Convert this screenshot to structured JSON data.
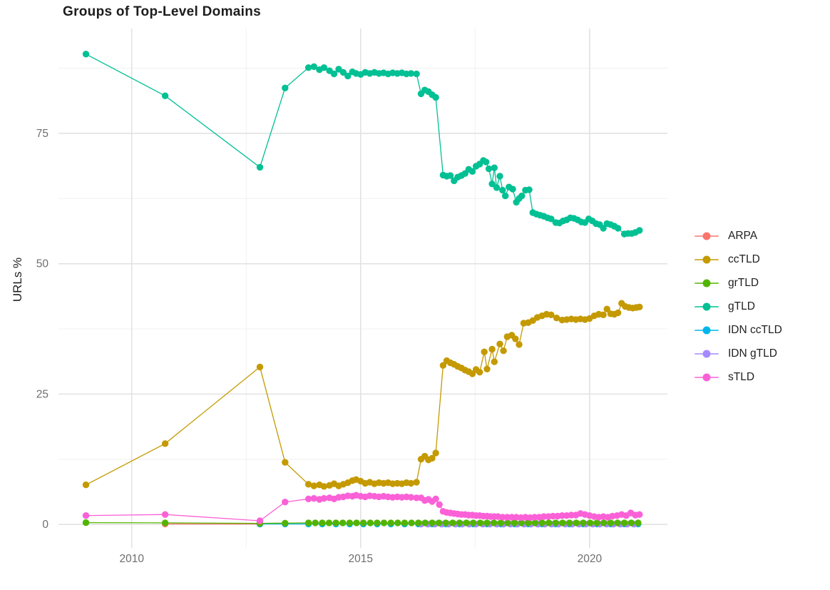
{
  "chart_data": {
    "type": "scatter",
    "title": "Groups of Top-Level Domains",
    "xlabel": "",
    "ylabel": "URLs %",
    "grid": "on",
    "legend_position": "right",
    "xlim": [
      2008.4,
      2021.7
    ],
    "ylim": [
      -4.5,
      95.1
    ],
    "x_ticks": [
      2010,
      2015,
      2020
    ],
    "x_minor_ticks": [
      2012.5,
      2017.5
    ],
    "y_ticks": [
      0,
      25,
      50,
      75
    ],
    "y_minor_ticks": [
      12.5,
      37.5,
      62.5,
      87.5
    ],
    "colors": {
      "grid_major": "#e2e2e2",
      "grid_minor": "#f0f0f0",
      "tick_label": "#6e6e6e",
      "title_text": "#1c1c1c"
    },
    "series": [
      {
        "name": "ARPA",
        "color": "#F8766D",
        "z": 1,
        "points": [
          [
            2010.73,
            0.1
          ],
          [
            2012.8,
            0.08
          ]
        ]
      },
      {
        "name": "ccTLD",
        "color": "#C49A00",
        "z": 4,
        "points": [
          [
            2009.0,
            7.6
          ],
          [
            2010.73,
            15.5
          ],
          [
            2012.8,
            30.2
          ],
          [
            2013.35,
            11.9
          ],
          [
            2013.86,
            7.7
          ],
          [
            2013.98,
            7.4
          ],
          [
            2014.1,
            7.6
          ],
          [
            2014.2,
            7.3
          ],
          [
            2014.32,
            7.5
          ],
          [
            2014.42,
            7.8
          ],
          [
            2014.52,
            7.4
          ],
          [
            2014.62,
            7.7
          ],
          [
            2014.72,
            8.0
          ],
          [
            2014.82,
            8.4
          ],
          [
            2014.9,
            8.6
          ],
          [
            2015.0,
            8.3
          ],
          [
            2015.1,
            7.9
          ],
          [
            2015.2,
            8.1
          ],
          [
            2015.3,
            7.8
          ],
          [
            2015.4,
            8.0
          ],
          [
            2015.5,
            7.9
          ],
          [
            2015.6,
            8.0
          ],
          [
            2015.7,
            7.8
          ],
          [
            2015.8,
            7.9
          ],
          [
            2015.9,
            7.8
          ],
          [
            2016.0,
            8.0
          ],
          [
            2016.1,
            7.9
          ],
          [
            2016.22,
            8.1
          ],
          [
            2016.32,
            12.5
          ],
          [
            2016.4,
            13.1
          ],
          [
            2016.48,
            12.4
          ],
          [
            2016.56,
            12.7
          ],
          [
            2016.64,
            13.7
          ],
          [
            2016.8,
            30.5
          ],
          [
            2016.88,
            31.4
          ],
          [
            2016.96,
            31.0
          ],
          [
            2017.04,
            30.7
          ],
          [
            2017.12,
            30.3
          ],
          [
            2017.2,
            30.0
          ],
          [
            2017.28,
            29.6
          ],
          [
            2017.36,
            29.3
          ],
          [
            2017.44,
            28.9
          ],
          [
            2017.52,
            29.7
          ],
          [
            2017.6,
            29.2
          ],
          [
            2017.7,
            33.1
          ],
          [
            2017.76,
            29.8
          ],
          [
            2017.87,
            33.6
          ],
          [
            2017.92,
            31.2
          ],
          [
            2018.04,
            34.6
          ],
          [
            2018.12,
            33.3
          ],
          [
            2018.2,
            36.0
          ],
          [
            2018.3,
            36.3
          ],
          [
            2018.38,
            35.6
          ],
          [
            2018.46,
            34.5
          ],
          [
            2018.56,
            38.6
          ],
          [
            2018.66,
            38.7
          ],
          [
            2018.76,
            39.1
          ],
          [
            2018.86,
            39.7
          ],
          [
            2018.96,
            40.0
          ],
          [
            2019.06,
            40.3
          ],
          [
            2019.16,
            40.2
          ],
          [
            2019.28,
            39.6
          ],
          [
            2019.4,
            39.2
          ],
          [
            2019.5,
            39.3
          ],
          [
            2019.6,
            39.4
          ],
          [
            2019.7,
            39.3
          ],
          [
            2019.8,
            39.4
          ],
          [
            2019.9,
            39.3
          ],
          [
            2020.0,
            39.5
          ],
          [
            2020.1,
            40.0
          ],
          [
            2020.2,
            40.3
          ],
          [
            2020.3,
            40.2
          ],
          [
            2020.38,
            41.3
          ],
          [
            2020.46,
            40.4
          ],
          [
            2020.54,
            40.3
          ],
          [
            2020.62,
            40.6
          ],
          [
            2020.7,
            42.4
          ],
          [
            2020.78,
            41.8
          ],
          [
            2020.86,
            41.6
          ],
          [
            2020.94,
            41.5
          ],
          [
            2021.02,
            41.6
          ],
          [
            2021.09,
            41.7
          ]
        ]
      },
      {
        "name": "grTLD",
        "color": "#53B400",
        "z": 6,
        "points": [
          [
            2009.0,
            0.35
          ],
          [
            2010.73,
            0.3
          ],
          [
            2012.8,
            0.2
          ],
          [
            2013.35,
            0.25
          ]
        ],
        "fill": {
          "from": 2013.86,
          "to": 2021.09,
          "step": 0.15,
          "value": 0.3
        }
      },
      {
        "name": "gTLD",
        "color": "#00C094",
        "z": 5,
        "points": [
          [
            2009.0,
            90.2
          ],
          [
            2010.73,
            82.2
          ],
          [
            2012.8,
            68.5
          ],
          [
            2013.35,
            83.7
          ],
          [
            2013.86,
            87.6
          ],
          [
            2013.98,
            87.8
          ],
          [
            2014.1,
            87.2
          ],
          [
            2014.2,
            87.6
          ],
          [
            2014.32,
            87.0
          ],
          [
            2014.42,
            86.4
          ],
          [
            2014.52,
            87.3
          ],
          [
            2014.62,
            86.7
          ],
          [
            2014.72,
            86.0
          ],
          [
            2014.82,
            86.8
          ],
          [
            2014.9,
            86.5
          ],
          [
            2015.0,
            86.3
          ],
          [
            2015.1,
            86.7
          ],
          [
            2015.2,
            86.5
          ],
          [
            2015.3,
            86.7
          ],
          [
            2015.4,
            86.5
          ],
          [
            2015.5,
            86.6
          ],
          [
            2015.6,
            86.4
          ],
          [
            2015.7,
            86.6
          ],
          [
            2015.8,
            86.5
          ],
          [
            2015.9,
            86.6
          ],
          [
            2016.0,
            86.4
          ],
          [
            2016.1,
            86.5
          ],
          [
            2016.22,
            86.4
          ],
          [
            2016.32,
            82.6
          ],
          [
            2016.4,
            83.3
          ],
          [
            2016.48,
            83.0
          ],
          [
            2016.56,
            82.4
          ],
          [
            2016.64,
            81.9
          ],
          [
            2016.8,
            67.0
          ],
          [
            2016.88,
            66.8
          ],
          [
            2016.96,
            66.9
          ],
          [
            2017.04,
            65.9
          ],
          [
            2017.12,
            66.6
          ],
          [
            2017.2,
            66.9
          ],
          [
            2017.28,
            67.3
          ],
          [
            2017.36,
            68.1
          ],
          [
            2017.44,
            67.7
          ],
          [
            2017.52,
            68.7
          ],
          [
            2017.6,
            69.1
          ],
          [
            2017.68,
            69.8
          ],
          [
            2017.74,
            69.5
          ],
          [
            2017.8,
            68.2
          ],
          [
            2017.87,
            65.3
          ],
          [
            2017.92,
            68.4
          ],
          [
            2017.97,
            64.6
          ],
          [
            2018.04,
            66.8
          ],
          [
            2018.1,
            64.1
          ],
          [
            2018.16,
            63.0
          ],
          [
            2018.24,
            64.7
          ],
          [
            2018.32,
            64.3
          ],
          [
            2018.4,
            61.8
          ],
          [
            2018.46,
            62.5
          ],
          [
            2018.52,
            63.0
          ],
          [
            2018.6,
            64.1
          ],
          [
            2018.68,
            64.2
          ],
          [
            2018.76,
            59.8
          ],
          [
            2018.84,
            59.5
          ],
          [
            2018.92,
            59.3
          ],
          [
            2019.0,
            59.1
          ],
          [
            2019.08,
            58.8
          ],
          [
            2019.16,
            58.6
          ],
          [
            2019.26,
            57.9
          ],
          [
            2019.34,
            57.8
          ],
          [
            2019.42,
            58.2
          ],
          [
            2019.5,
            58.4
          ],
          [
            2019.58,
            58.8
          ],
          [
            2019.66,
            58.7
          ],
          [
            2019.74,
            58.4
          ],
          [
            2019.82,
            58.0
          ],
          [
            2019.9,
            57.9
          ],
          [
            2019.98,
            58.6
          ],
          [
            2020.06,
            58.2
          ],
          [
            2020.14,
            57.7
          ],
          [
            2020.22,
            57.5
          ],
          [
            2020.3,
            56.8
          ],
          [
            2020.38,
            57.7
          ],
          [
            2020.46,
            57.5
          ],
          [
            2020.54,
            57.2
          ],
          [
            2020.62,
            56.8
          ],
          [
            2020.76,
            55.7
          ],
          [
            2020.84,
            55.8
          ],
          [
            2020.92,
            55.8
          ],
          [
            2021.0,
            56.0
          ],
          [
            2021.09,
            56.4
          ]
        ]
      },
      {
        "name": "IDN ccTLD",
        "color": "#00B6EB",
        "z": 2,
        "points": [
          [
            2012.8,
            0.1
          ],
          [
            2013.35,
            0.1
          ]
        ],
        "fill": {
          "from": 2013.86,
          "to": 2021.09,
          "step": 0.3,
          "value": 0.1
        }
      },
      {
        "name": "IDN gTLD",
        "color": "#A58AFF",
        "z": 3,
        "points": [],
        "fill": {
          "from": 2016.32,
          "to": 2021.09,
          "step": 0.15,
          "value": 0.05
        }
      },
      {
        "name": "sTLD",
        "color": "#FB61D7",
        "z": 7,
        "points": [
          [
            2009.0,
            1.7
          ],
          [
            2010.73,
            1.9
          ],
          [
            2012.8,
            0.7
          ],
          [
            2013.35,
            4.3
          ],
          [
            2013.86,
            4.9
          ],
          [
            2013.98,
            5.0
          ],
          [
            2014.1,
            4.8
          ],
          [
            2014.2,
            5.0
          ],
          [
            2014.32,
            5.1
          ],
          [
            2014.42,
            4.9
          ],
          [
            2014.52,
            5.2
          ],
          [
            2014.62,
            5.3
          ],
          [
            2014.72,
            5.5
          ],
          [
            2014.82,
            5.4
          ],
          [
            2014.9,
            5.6
          ],
          [
            2015.0,
            5.4
          ],
          [
            2015.1,
            5.3
          ],
          [
            2015.2,
            5.5
          ],
          [
            2015.3,
            5.4
          ],
          [
            2015.4,
            5.3
          ],
          [
            2015.5,
            5.4
          ],
          [
            2015.6,
            5.3
          ],
          [
            2015.7,
            5.2
          ],
          [
            2015.8,
            5.3
          ],
          [
            2015.9,
            5.2
          ],
          [
            2016.0,
            5.3
          ],
          [
            2016.1,
            5.2
          ],
          [
            2016.22,
            5.1
          ],
          [
            2016.32,
            5.1
          ],
          [
            2016.4,
            4.6
          ],
          [
            2016.48,
            4.8
          ],
          [
            2016.56,
            4.4
          ],
          [
            2016.64,
            4.9
          ],
          [
            2016.72,
            3.8
          ],
          [
            2016.8,
            2.5
          ],
          [
            2016.88,
            2.3
          ],
          [
            2016.96,
            2.2
          ],
          [
            2017.04,
            2.1
          ],
          [
            2017.12,
            2.0
          ],
          [
            2017.2,
            1.9
          ],
          [
            2017.28,
            1.9
          ],
          [
            2017.36,
            1.8
          ],
          [
            2017.44,
            1.8
          ],
          [
            2017.52,
            1.7
          ],
          [
            2017.6,
            1.7
          ],
          [
            2017.68,
            1.6
          ],
          [
            2017.76,
            1.6
          ],
          [
            2017.84,
            1.5
          ],
          [
            2017.92,
            1.5
          ],
          [
            2018.0,
            1.5
          ],
          [
            2018.1,
            1.4
          ],
          [
            2018.2,
            1.4
          ],
          [
            2018.3,
            1.4
          ],
          [
            2018.4,
            1.4
          ],
          [
            2018.5,
            1.3
          ],
          [
            2018.6,
            1.4
          ],
          [
            2018.7,
            1.3
          ],
          [
            2018.8,
            1.4
          ],
          [
            2018.9,
            1.4
          ],
          [
            2019.0,
            1.5
          ],
          [
            2019.1,
            1.5
          ],
          [
            2019.2,
            1.6
          ],
          [
            2019.3,
            1.6
          ],
          [
            2019.4,
            1.7
          ],
          [
            2019.5,
            1.7
          ],
          [
            2019.6,
            1.8
          ],
          [
            2019.7,
            1.8
          ],
          [
            2019.8,
            2.1
          ],
          [
            2019.9,
            1.9
          ],
          [
            2020.0,
            1.7
          ],
          [
            2020.1,
            1.5
          ],
          [
            2020.2,
            1.4
          ],
          [
            2020.3,
            1.5
          ],
          [
            2020.4,
            1.4
          ],
          [
            2020.5,
            1.6
          ],
          [
            2020.6,
            1.7
          ],
          [
            2020.7,
            1.9
          ],
          [
            2020.8,
            1.7
          ],
          [
            2020.9,
            2.2
          ],
          [
            2021.0,
            1.8
          ],
          [
            2021.09,
            1.9
          ]
        ]
      }
    ]
  }
}
